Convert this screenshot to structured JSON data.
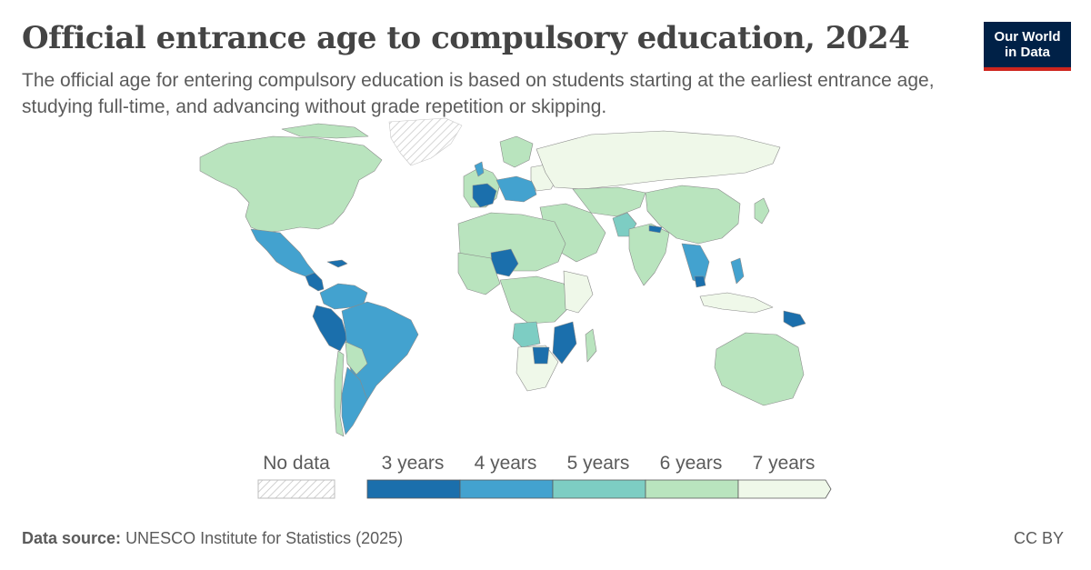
{
  "header": {
    "title": "Official entrance age to compulsory education, 2024",
    "subtitle": "The official age for entering compulsory education is based on students starting at the earliest entrance age, studying full-time, and advancing without grade repetition or skipping."
  },
  "logo": {
    "line1": "Our World",
    "line2": "in Data"
  },
  "legend": {
    "no_data_label": "No data",
    "bins": [
      {
        "label": "3 years",
        "color": "#1b6fac"
      },
      {
        "label": "4 years",
        "color": "#43a2cf"
      },
      {
        "label": "5 years",
        "color": "#7dcdc3"
      },
      {
        "label": "6 years",
        "color": "#b9e4be"
      },
      {
        "label": "7 years",
        "color": "#eff8e9"
      }
    ]
  },
  "colors": {
    "three": "#1b6fac",
    "four": "#43a2cf",
    "five": "#7dcdc3",
    "six": "#b9e4be",
    "seven": "#eff8e9",
    "border": "#8a8a8a"
  },
  "footer": {
    "source_label": "Data source:",
    "source_text": "UNESCO Institute for Statistics (2025)",
    "license": "CC BY"
  }
}
